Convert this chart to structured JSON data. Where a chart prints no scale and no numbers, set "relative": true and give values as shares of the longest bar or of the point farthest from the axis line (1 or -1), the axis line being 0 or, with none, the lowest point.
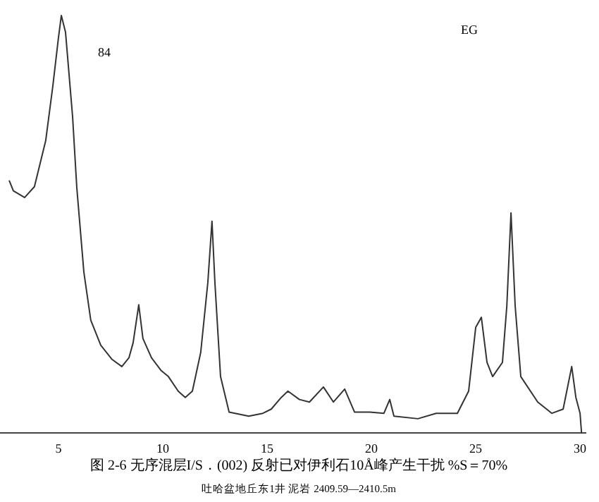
{
  "chart_data": {
    "type": "line",
    "relative": true,
    "title": "图 2-6  无序混层I/S．(002) 反射已对伊利石10Å峰产生干扰   %S＝70%",
    "annotations": [
      "84",
      "EG",
      "吐哈盆地丘东1井  泥岩  2409.59—2410.5m"
    ],
    "xlim": [
      2.2,
      30.3
    ],
    "xticks": [
      5,
      10,
      15,
      20,
      25,
      30
    ],
    "series": [
      {
        "color": "#333333",
        "x": [
          2.64,
          2.84,
          3.38,
          3.85,
          4.39,
          4.73,
          5.0,
          5.14,
          5.34,
          5.68,
          5.88,
          6.22,
          6.55,
          7.03,
          7.57,
          8.04,
          8.38,
          8.58,
          8.85,
          9.05,
          9.46,
          9.93,
          10.27,
          10.74,
          11.08,
          11.42,
          11.82,
          12.16,
          12.36,
          12.5,
          12.77,
          13.18,
          14.12,
          14.8,
          15.2,
          15.68,
          16.0,
          16.55,
          17.03,
          17.7,
          18.18,
          18.72,
          19.19,
          19.93,
          20.6,
          20.88,
          21.08,
          22.23,
          23.1,
          24.12,
          24.66,
          25.0,
          25.27,
          25.54,
          25.81,
          26.28,
          26.49,
          26.69,
          26.89,
          27.16,
          27.97,
          28.65,
          29.19,
          29.6,
          29.8,
          30.0,
          30.07
        ],
        "values": [
          0.605,
          0.58,
          0.564,
          0.59,
          0.7,
          0.83,
          0.946,
          1,
          0.96,
          0.757,
          0.588,
          0.385,
          0.27,
          0.21,
          0.176,
          0.159,
          0.18,
          0.216,
          0.307,
          0.226,
          0.18,
          0.149,
          0.135,
          0.1,
          0.085,
          0.1,
          0.193,
          0.36,
          0.507,
          0.36,
          0.135,
          0.05,
          0.04,
          0.047,
          0.057,
          0.085,
          0.1,
          0.08,
          0.074,
          0.11,
          0.074,
          0.105,
          0.05,
          0.05,
          0.047,
          0.08,
          0.04,
          0.034,
          0.047,
          0.047,
          0.1,
          0.253,
          0.277,
          0.169,
          0.135,
          0.169,
          0.304,
          0.527,
          0.304,
          0.135,
          0.074,
          0.047,
          0.057,
          0.159,
          0.085,
          0.047,
          0.0
        ]
      }
    ]
  }
}
